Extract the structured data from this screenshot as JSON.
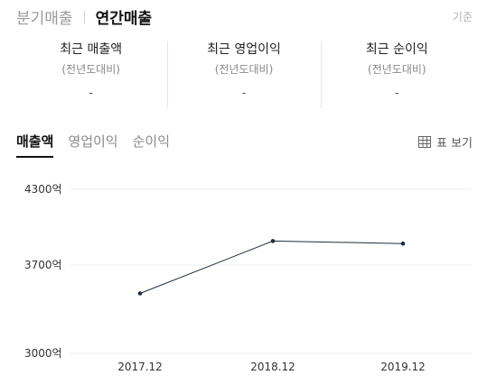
{
  "header": {
    "tabs": [
      "분기매출",
      "연간매출"
    ],
    "active_tab": 1,
    "basis_label": "기준"
  },
  "summary": [
    {
      "title": "최근 매출액",
      "subtitle": "(전년도대비)",
      "value": "-"
    },
    {
      "title": "최근 영업이익",
      "subtitle": "(전년도대비)",
      "value": "-"
    },
    {
      "title": "최근 순이익",
      "subtitle": "(전년도대비)",
      "value": "-"
    }
  ],
  "metric_tabs": [
    "매출액",
    "영업이익",
    "순이익"
  ],
  "active_metric": 0,
  "table_view_label": "표 보기",
  "colors": {
    "line": "#1f2d3d",
    "grid": "#efefef",
    "accent": "#111111"
  },
  "chart_data": {
    "type": "line",
    "categories": [
      "2017.12",
      "2018.12",
      "2019.12"
    ],
    "values": [
      3475,
      3890,
      3870
    ],
    "yticks": [
      3000,
      3700,
      4300
    ],
    "ytick_labels": [
      "3000억",
      "3700억",
      "4300억"
    ],
    "ylim": [
      3000,
      4300
    ],
    "grid": true,
    "legend": "none"
  }
}
